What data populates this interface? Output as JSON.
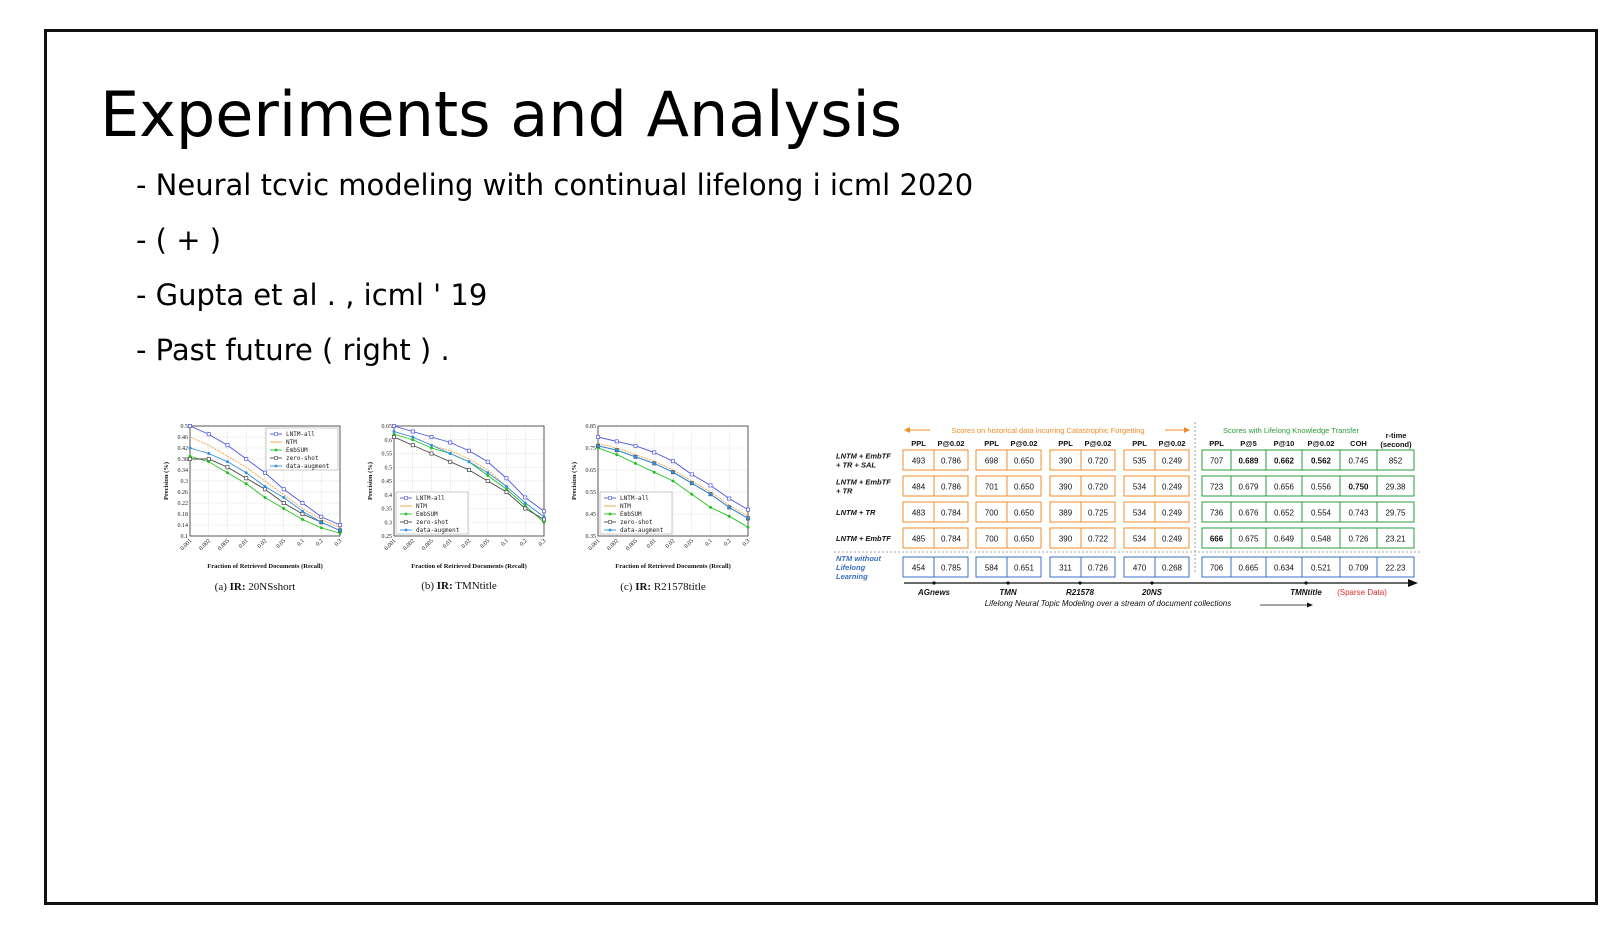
{
  "slide": {
    "title": "Experiments and Analysis",
    "bullets": [
      "- Neural tcvic modeling with continual lifelong i icml 2020",
      "- ( + )",
      "- Gupta et al . , icml ' 19",
      "- Past future ( right ) ."
    ]
  },
  "chart_data": [
    {
      "type": "line",
      "caption_prefix": "(a) ",
      "caption_bold": "IR:",
      "caption_rest": " 20NSshort",
      "xlabel": "Fraction of Retrieved Documents (Recall)",
      "ylabel": "Precision (%)",
      "categories": [
        "0.001",
        "0.002",
        "0.005",
        "0.01",
        "0.02",
        "0.05",
        "0.1",
        "0.2",
        "0.3"
      ],
      "yticks": [
        "0.1",
        "0.14",
        "0.18",
        "0.22",
        "0.26",
        "0.3",
        "0.34",
        "0.38",
        "0.42",
        "0.46",
        "0.5"
      ],
      "ylim": [
        0.1,
        0.5
      ],
      "legend_position": "top-right",
      "grid": true,
      "series": [
        {
          "name": "LNTM-all",
          "color": "#4a55e0",
          "marker": "square-open",
          "values": [
            0.5,
            0.47,
            0.43,
            0.38,
            0.33,
            0.27,
            0.22,
            0.17,
            0.14
          ]
        },
        {
          "name": "NTM",
          "color": "#f0a040",
          "marker": "none",
          "values": [
            0.46,
            0.43,
            0.39,
            0.35,
            0.3,
            0.25,
            0.2,
            0.16,
            0.13
          ]
        },
        {
          "name": "EmbSUM",
          "color": "#22c222",
          "marker": "dot",
          "values": [
            0.39,
            0.37,
            0.33,
            0.29,
            0.24,
            0.2,
            0.16,
            0.13,
            0.11
          ]
        },
        {
          "name": "zero-shot",
          "color": "#444444",
          "marker": "square-open",
          "values": [
            0.38,
            0.38,
            0.35,
            0.31,
            0.27,
            0.22,
            0.18,
            0.15,
            0.12
          ]
        },
        {
          "name": "data-augment",
          "color": "#2f8fe0",
          "marker": "dot",
          "values": [
            0.42,
            0.4,
            0.37,
            0.33,
            0.28,
            0.24,
            0.19,
            0.15,
            0.12
          ]
        }
      ]
    },
    {
      "type": "line",
      "caption_prefix": "(b) ",
      "caption_bold": "IR:",
      "caption_rest": " TMNtitle",
      "xlabel": "Fraction of Retrieved Documents (Recall)",
      "ylabel": "Precision (%)",
      "categories": [
        "0.001",
        "0.002",
        "0.005",
        "0.01",
        "0.02",
        "0.05",
        "0.1",
        "0.2",
        "0.3"
      ],
      "yticks": [
        "0.25",
        "0.3",
        "0.35",
        "0.4",
        "0.45",
        "0.5",
        "0.55",
        "0.6",
        "0.65"
      ],
      "ylim": [
        0.25,
        0.65
      ],
      "legend_position": "bottom-left",
      "grid": true,
      "series": [
        {
          "name": "LNTM-all",
          "color": "#4a55e0",
          "marker": "square-open",
          "values": [
            0.65,
            0.63,
            0.61,
            0.59,
            0.56,
            0.52,
            0.46,
            0.39,
            0.34
          ]
        },
        {
          "name": "NTM",
          "color": "#f0a040",
          "marker": "none",
          "values": [
            0.63,
            0.61,
            0.58,
            0.56,
            0.53,
            0.49,
            0.43,
            0.37,
            0.32
          ]
        },
        {
          "name": "EmbSUM",
          "color": "#22c222",
          "marker": "dot",
          "values": [
            0.62,
            0.6,
            0.57,
            0.55,
            0.52,
            0.47,
            0.42,
            0.36,
            0.3
          ]
        },
        {
          "name": "zero-shot",
          "color": "#444444",
          "marker": "square-open",
          "values": [
            0.61,
            0.58,
            0.55,
            0.52,
            0.49,
            0.45,
            0.41,
            0.35,
            0.31
          ]
        },
        {
          "name": "data-augment",
          "color": "#2f8fe0",
          "marker": "dot",
          "values": [
            0.63,
            0.61,
            0.58,
            0.55,
            0.52,
            0.48,
            0.43,
            0.37,
            0.32
          ]
        }
      ]
    },
    {
      "type": "line",
      "caption_prefix": "(c) ",
      "caption_bold": "IR:",
      "caption_rest": " R21578title",
      "xlabel": "Fraction of Retrieved Documents (Recall)",
      "ylabel": "Precision (%)",
      "categories": [
        "0.001",
        "0.002",
        "0.005",
        "0.01",
        "0.02",
        "0.05",
        "0.1",
        "0.2",
        "0.3"
      ],
      "yticks": [
        "0.35",
        "0.45",
        "0.55",
        "0.65",
        "0.75",
        "0.85"
      ],
      "ylim": [
        0.35,
        0.85
      ],
      "legend_position": "bottom-left",
      "grid": true,
      "series": [
        {
          "name": "LNTM-all",
          "color": "#4a55e0",
          "marker": "square-open",
          "values": [
            0.8,
            0.78,
            0.76,
            0.73,
            0.69,
            0.63,
            0.58,
            0.52,
            0.47
          ]
        },
        {
          "name": "NTM",
          "color": "#f0a040",
          "marker": "none",
          "values": [
            0.77,
            0.75,
            0.72,
            0.69,
            0.65,
            0.6,
            0.55,
            0.49,
            0.44
          ]
        },
        {
          "name": "EmbSUM",
          "color": "#22c222",
          "marker": "dot",
          "values": [
            0.75,
            0.72,
            0.68,
            0.64,
            0.6,
            0.54,
            0.48,
            0.44,
            0.39
          ]
        },
        {
          "name": "zero-shot",
          "color": "#444444",
          "marker": "square-open",
          "values": [
            0.76,
            0.74,
            0.71,
            0.68,
            0.64,
            0.59,
            0.54,
            0.48,
            0.43
          ]
        },
        {
          "name": "data-augment",
          "color": "#2f8fe0",
          "marker": "dot",
          "values": [
            0.76,
            0.74,
            0.71,
            0.68,
            0.64,
            0.59,
            0.54,
            0.48,
            0.43
          ]
        }
      ]
    }
  ],
  "table": {
    "hist_header": "Scores on historical data incurring Catastrophic Forgetting",
    "transfer_header": "Scores with Lifelong Knowledge Transfer",
    "rtime_header": [
      "r-time",
      "(second)"
    ],
    "hist_cols": [
      "PPL",
      "P@0.02",
      "PPL",
      "P@0.02",
      "PPL",
      "P@0.02",
      "PPL",
      "P@0.02"
    ],
    "transfer_cols": [
      "PPL",
      "P@5",
      "P@10",
      "P@0.02",
      "COH"
    ],
    "rows": [
      {
        "label": [
          "LNTM + EmbTF",
          "+ TR + SAL"
        ],
        "hist": [
          "493",
          "0.786",
          "698",
          "0.650",
          "390",
          "0.720",
          "535",
          "0.249"
        ],
        "transfer": [
          "707",
          "0.689",
          "0.662",
          "0.562",
          "0.745",
          "852"
        ],
        "bold": [
          1,
          2,
          3
        ]
      },
      {
        "label": [
          "LNTM + EmbTF",
          "+ TR"
        ],
        "hist": [
          "484",
          "0.786",
          "701",
          "0.650",
          "390",
          "0.720",
          "534",
          "0.249"
        ],
        "transfer": [
          "723",
          "0.679",
          "0.656",
          "0.556",
          "0.750",
          "29.38"
        ],
        "bold": [
          4
        ]
      },
      {
        "label": [
          "LNTM + TR"
        ],
        "hist": [
          "483",
          "0.784",
          "700",
          "0.650",
          "389",
          "0.725",
          "534",
          "0.249"
        ],
        "transfer": [
          "736",
          "0.676",
          "0.652",
          "0.554",
          "0.743",
          "29.75"
        ],
        "bold": []
      },
      {
        "label": [
          "LNTM + EmbTF"
        ],
        "hist": [
          "485",
          "0.784",
          "700",
          "0.650",
          "390",
          "0.722",
          "534",
          "0.249"
        ],
        "transfer": [
          "666",
          "0.675",
          "0.649",
          "0.548",
          "0.726",
          "23.21"
        ],
        "bold": [
          0
        ]
      }
    ],
    "baseline": {
      "label": [
        "NTM without",
        "Lifelong",
        "Learning"
      ],
      "hist": [
        "454",
        "0.785",
        "584",
        "0.651",
        "311",
        "0.726",
        "470",
        "0.268"
      ],
      "transfer": [
        "706",
        "0.665",
        "0.634",
        "0.521",
        "0.709",
        "22.23"
      ]
    },
    "datasets": [
      "AGnews",
      "TMN",
      "R21578",
      "20NS",
      "TMNtitle"
    ],
    "sparse_note": "(Sparse Data)",
    "footer": "Lifelong Neural Topic Modeling over a stream of document collections",
    "colors": {
      "orange": "#f28c28",
      "green": "#2e9b3a",
      "blue": "#3a6fc4",
      "red": "#d83030"
    }
  }
}
